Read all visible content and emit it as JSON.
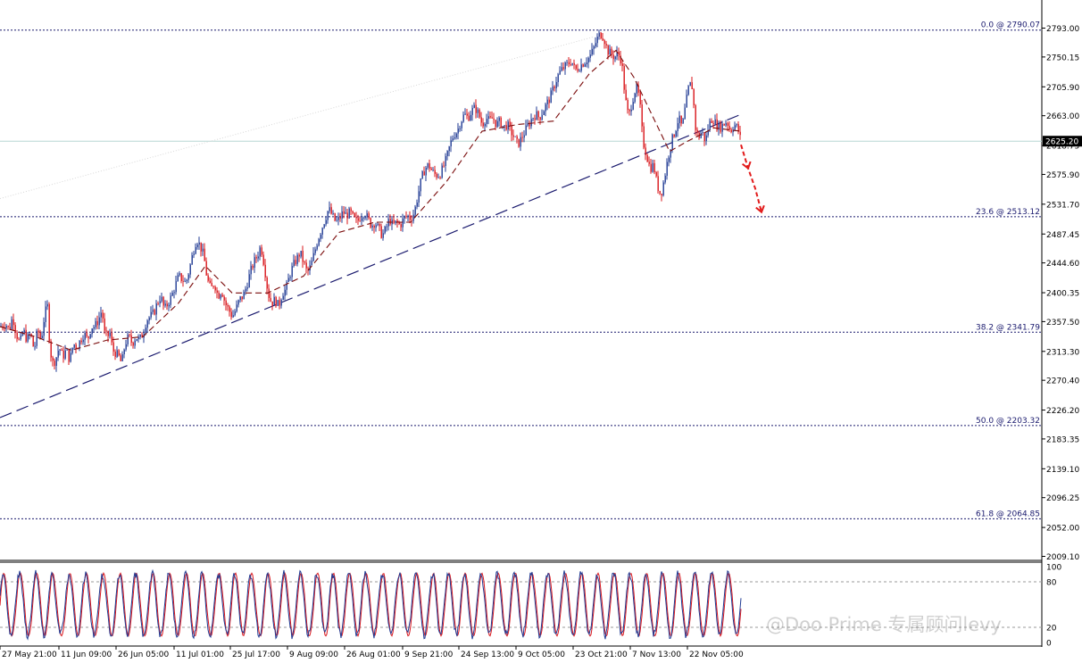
{
  "chart_data": {
    "type": "candlestick",
    "instrument_note": "Gold price chart with Fibonacci retracement, trendline, moving average and stochastic oscillator",
    "price_axis": {
      "ticks": [
        "2793.00",
        "2750.15",
        "2705.90",
        "2663.00",
        "2618.75",
        "2575.90",
        "2531.70",
        "2487.45",
        "2444.60",
        "2400.35",
        "2357.50",
        "2313.30",
        "2270.40",
        "2226.20",
        "2183.35",
        "2139.10",
        "2096.25",
        "2052.00",
        "2009.10"
      ],
      "range": [
        2000,
        2800
      ],
      "current_price": "2625.20"
    },
    "fibonacci_levels": [
      {
        "label": "0.0 @ 2790.07",
        "value": 2790.07
      },
      {
        "label": "23.6 @ 2513.12",
        "value": 2513.12
      },
      {
        "label": "38.2 @ 2341.79",
        "value": 2341.79
      },
      {
        "label": "50.0 @ 2203.32",
        "value": 2203.32
      },
      {
        "label": "61.8 @ 2064.85",
        "value": 2064.85
      }
    ],
    "x_ticks": [
      "27 May 21:00",
      "11 Jun 09:00",
      "26 Jun 05:00",
      "11 Jul 01:00",
      "25 Jul 17:00",
      "9 Aug 09:00",
      "26 Aug 01:00",
      "9 Sep 21:00",
      "24 Sep 13:00",
      "9 Oct 05:00",
      "23 Oct 21:00",
      "7 Nov 13:00",
      "22 Nov 05:00"
    ],
    "price_path": [
      [
        0,
        2350
      ],
      [
        6,
        2355
      ],
      [
        10,
        2345
      ],
      [
        14,
        2365
      ],
      [
        18,
        2340
      ],
      [
        22,
        2325
      ],
      [
        26,
        2345
      ],
      [
        30,
        2330
      ],
      [
        34,
        2340
      ],
      [
        38,
        2315
      ],
      [
        42,
        2345
      ],
      [
        46,
        2330
      ],
      [
        50,
        2370
      ],
      [
        53,
        2380
      ],
      [
        55,
        2335
      ],
      [
        58,
        2295
      ],
      [
        62,
        2300
      ],
      [
        66,
        2320
      ],
      [
        70,
        2305
      ],
      [
        74,
        2315
      ],
      [
        78,
        2300
      ],
      [
        82,
        2325
      ],
      [
        86,
        2320
      ],
      [
        90,
        2330
      ],
      [
        94,
        2340
      ],
      [
        98,
        2330
      ],
      [
        102,
        2350
      ],
      [
        106,
        2350
      ],
      [
        110,
        2360
      ],
      [
        114,
        2375
      ],
      [
        117,
        2340
      ],
      [
        120,
        2335
      ],
      [
        123,
        2340
      ],
      [
        126,
        2315
      ],
      [
        130,
        2310
      ],
      [
        133,
        2305
      ],
      [
        136,
        2295
      ],
      [
        140,
        2325
      ],
      [
        144,
        2335
      ],
      [
        148,
        2325
      ],
      [
        152,
        2335
      ],
      [
        156,
        2330
      ],
      [
        160,
        2340
      ],
      [
        164,
        2360
      ],
      [
        168,
        2365
      ],
      [
        172,
        2370
      ],
      [
        176,
        2385
      ],
      [
        180,
        2395
      ],
      [
        184,
        2375
      ],
      [
        188,
        2385
      ],
      [
        192,
        2395
      ],
      [
        196,
        2410
      ],
      [
        200,
        2425
      ],
      [
        204,
        2420
      ],
      [
        208,
        2415
      ],
      [
        212,
        2435
      ],
      [
        216,
        2460
      ],
      [
        220,
        2480
      ],
      [
        224,
        2470
      ],
      [
        228,
        2455
      ],
      [
        232,
        2420
      ],
      [
        236,
        2405
      ],
      [
        240,
        2415
      ],
      [
        244,
        2395
      ],
      [
        248,
        2405
      ],
      [
        252,
        2385
      ],
      [
        256,
        2375
      ],
      [
        260,
        2365
      ],
      [
        264,
        2375
      ],
      [
        268,
        2390
      ],
      [
        272,
        2395
      ],
      [
        276,
        2410
      ],
      [
        280,
        2430
      ],
      [
        284,
        2445
      ],
      [
        288,
        2455
      ],
      [
        292,
        2470
      ],
      [
        296,
        2440
      ],
      [
        300,
        2400
      ],
      [
        304,
        2385
      ],
      [
        308,
        2390
      ],
      [
        312,
        2380
      ],
      [
        316,
        2400
      ],
      [
        320,
        2405
      ],
      [
        324,
        2425
      ],
      [
        328,
        2440
      ],
      [
        332,
        2450
      ],
      [
        336,
        2460
      ],
      [
        340,
        2445
      ],
      [
        344,
        2430
      ],
      [
        348,
        2440
      ],
      [
        352,
        2460
      ],
      [
        356,
        2480
      ],
      [
        360,
        2495
      ],
      [
        364,
        2510
      ],
      [
        368,
        2525
      ],
      [
        372,
        2515
      ],
      [
        376,
        2505
      ],
      [
        380,
        2510
      ],
      [
        384,
        2520
      ],
      [
        388,
        2515
      ],
      [
        392,
        2520
      ],
      [
        396,
        2510
      ],
      [
        400,
        2505
      ],
      [
        404,
        2515
      ],
      [
        408,
        2520
      ],
      [
        412,
        2510
      ],
      [
        416,
        2500
      ],
      [
        420,
        2505
      ],
      [
        424,
        2495
      ],
      [
        428,
        2485
      ],
      [
        432,
        2495
      ],
      [
        436,
        2510
      ],
      [
        440,
        2500
      ],
      [
        444,
        2505
      ],
      [
        448,
        2500
      ],
      [
        452,
        2510
      ],
      [
        456,
        2515
      ],
      [
        460,
        2510
      ],
      [
        464,
        2520
      ],
      [
        468,
        2545
      ],
      [
        472,
        2570
      ],
      [
        476,
        2585
      ],
      [
        480,
        2590
      ],
      [
        484,
        2580
      ],
      [
        488,
        2575
      ],
      [
        492,
        2575
      ],
      [
        496,
        2585
      ],
      [
        500,
        2600
      ],
      [
        504,
        2620
      ],
      [
        508,
        2635
      ],
      [
        512,
        2640
      ],
      [
        516,
        2655
      ],
      [
        520,
        2665
      ],
      [
        524,
        2660
      ],
      [
        528,
        2670
      ],
      [
        532,
        2675
      ],
      [
        536,
        2665
      ],
      [
        540,
        2650
      ],
      [
        544,
        2660
      ],
      [
        548,
        2655
      ],
      [
        552,
        2660
      ],
      [
        556,
        2650
      ],
      [
        560,
        2655
      ],
      [
        564,
        2645
      ],
      [
        568,
        2650
      ],
      [
        572,
        2640
      ],
      [
        576,
        2630
      ],
      [
        580,
        2620
      ],
      [
        584,
        2630
      ],
      [
        588,
        2640
      ],
      [
        592,
        2650
      ],
      [
        596,
        2660
      ],
      [
        600,
        2665
      ],
      [
        604,
        2660
      ],
      [
        608,
        2670
      ],
      [
        612,
        2680
      ],
      [
        616,
        2690
      ],
      [
        620,
        2705
      ],
      [
        624,
        2720
      ],
      [
        628,
        2730
      ],
      [
        632,
        2735
      ],
      [
        636,
        2740
      ],
      [
        640,
        2745
      ],
      [
        644,
        2730
      ],
      [
        648,
        2735
      ],
      [
        652,
        2740
      ],
      [
        656,
        2745
      ],
      [
        660,
        2750
      ],
      [
        664,
        2760
      ],
      [
        668,
        2775
      ],
      [
        672,
        2785
      ],
      [
        676,
        2780
      ],
      [
        680,
        2760
      ],
      [
        684,
        2755
      ],
      [
        688,
        2750
      ],
      [
        692,
        2755
      ],
      [
        696,
        2745
      ],
      [
        698,
        2720
      ],
      [
        700,
        2690
      ],
      [
        702,
        2675
      ],
      [
        704,
        2660
      ],
      [
        708,
        2685
      ],
      [
        712,
        2705
      ],
      [
        716,
        2690
      ],
      [
        720,
        2625
      ],
      [
        724,
        2605
      ],
      [
        728,
        2585
      ],
      [
        732,
        2590
      ],
      [
        736,
        2560
      ],
      [
        740,
        2545
      ],
      [
        744,
        2570
      ],
      [
        748,
        2600
      ],
      [
        752,
        2625
      ],
      [
        756,
        2640
      ],
      [
        760,
        2660
      ],
      [
        764,
        2645
      ],
      [
        768,
        2680
      ],
      [
        772,
        2710
      ],
      [
        776,
        2705
      ],
      [
        778,
        2650
      ],
      [
        782,
        2630
      ],
      [
        786,
        2640
      ],
      [
        790,
        2625
      ],
      [
        794,
        2650
      ],
      [
        798,
        2660
      ],
      [
        802,
        2650
      ],
      [
        806,
        2645
      ],
      [
        810,
        2650
      ],
      [
        814,
        2655
      ],
      [
        818,
        2640
      ],
      [
        822,
        2650
      ],
      [
        826,
        2645
      ],
      [
        830,
        2625
      ]
    ],
    "moving_average": [
      [
        0,
        2350
      ],
      [
        40,
        2335
      ],
      [
        80,
        2315
      ],
      [
        120,
        2330
      ],
      [
        160,
        2335
      ],
      [
        200,
        2385
      ],
      [
        230,
        2440
      ],
      [
        260,
        2400
      ],
      [
        300,
        2400
      ],
      [
        340,
        2425
      ],
      [
        380,
        2490
      ],
      [
        420,
        2505
      ],
      [
        460,
        2505
      ],
      [
        500,
        2565
      ],
      [
        540,
        2640
      ],
      [
        580,
        2650
      ],
      [
        620,
        2655
      ],
      [
        660,
        2725
      ],
      [
        690,
        2760
      ],
      [
        710,
        2720
      ],
      [
        730,
        2665
      ],
      [
        750,
        2610
      ],
      [
        770,
        2625
      ],
      [
        800,
        2645
      ],
      [
        830,
        2640
      ]
    ],
    "forecast_arrow": [
      [
        830,
        2620
      ],
      [
        838,
        2585
      ],
      [
        846,
        2555
      ],
      [
        853,
        2520
      ]
    ],
    "trendline": {
      "from": [
        0,
        2215
      ],
      "to": [
        830,
        2665
      ]
    },
    "stochastic_axis": {
      "ticks": [
        "100",
        "80",
        "20",
        "0"
      ]
    },
    "stochastic_levels": [
      80,
      20
    ]
  },
  "watermark": "@Doo Prime 专属顾问levy"
}
